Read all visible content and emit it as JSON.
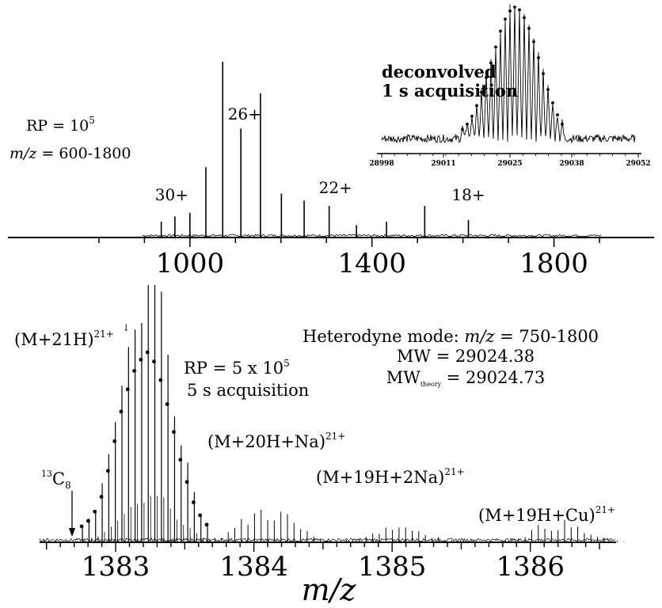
{
  "chart_data": [
    {
      "type": "line",
      "panel": "full-spectrum",
      "x_ticks": [
        1000,
        1400,
        1800
      ],
      "xlim": [
        600,
        2020
      ],
      "annotations": {
        "rp": "RP = 10",
        "rp_exp": "5",
        "mz_prefix": "m/z",
        "mz_range": " = 600-1800"
      },
      "charge_labels": [
        {
          "text": "30+",
          "x": 960
        },
        {
          "text": "26+",
          "x": 1120
        },
        {
          "text": "22+",
          "x": 1320
        },
        {
          "text": "18+",
          "x": 1612
        }
      ],
      "peaks": [
        {
          "x": 937,
          "y": 0.09
        },
        {
          "x": 967,
          "y": 0.12
        },
        {
          "x": 1000,
          "y": 0.14
        },
        {
          "x": 1035,
          "y": 0.4
        },
        {
          "x": 1072,
          "y": 1.0
        },
        {
          "x": 1112,
          "y": 0.62
        },
        {
          "x": 1155,
          "y": 0.82
        },
        {
          "x": 1201,
          "y": 0.25
        },
        {
          "x": 1251,
          "y": 0.21
        },
        {
          "x": 1306,
          "y": 0.18
        },
        {
          "x": 1366,
          "y": 0.07
        },
        {
          "x": 1432,
          "y": 0.09
        },
        {
          "x": 1516,
          "y": 0.18
        },
        {
          "x": 1612,
          "y": 0.1
        }
      ]
    },
    {
      "type": "line",
      "panel": "deconvolved-inset",
      "x_ticks": [
        28998,
        29011,
        29025,
        29038,
        29052
      ],
      "xlim": [
        28998,
        29052
      ],
      "annotations": {
        "line1": "deconvolved",
        "line2": "1 s acquisition"
      },
      "arrow_x": 29025,
      "envelope_center": 29025,
      "envelope_sigma": 5.0,
      "peak_heights": [
        0.08,
        0.12,
        0.18,
        0.26,
        0.36,
        0.47,
        0.58,
        0.7,
        0.82,
        0.91,
        0.97,
        1.0,
        0.98,
        0.92,
        0.84,
        0.74,
        0.62,
        0.5,
        0.38,
        0.28,
        0.19,
        0.12
      ],
      "peak_start_x": 29015
    },
    {
      "type": "line",
      "panel": "heterodyne-zoom",
      "x_ticks": [
        1383,
        1384,
        1385,
        1386
      ],
      "xlim": [
        1382.45,
        1386.62
      ],
      "xlabel": "m/z",
      "annotations": {
        "het_prefix": "Heterodyne mode: ",
        "het_mz": "m/z",
        "het_range": " = 750-1800",
        "mw": "MW = 29024.38",
        "mw_theory_prefix": "MW",
        "mw_theory_sub": "theory",
        "mw_theory_value": " = 29024.73",
        "rp": "RP = 5 x 10",
        "rp_exp": "5",
        "acq": "5 s acquisition",
        "c13": "13",
        "c13_label": "C",
        "c13_sub": "8"
      },
      "species": [
        {
          "text": "(M+21H)",
          "sup": "21+"
        },
        {
          "text": "(M+20H+Na)",
          "sup": "21+"
        },
        {
          "text": "(M+19H+2Na)",
          "sup": "21+"
        },
        {
          "text": "(M+19H+Cu)",
          "sup": "21+"
        }
      ],
      "main_peak_heights": [
        0.06,
        0.09,
        0.14,
        0.22,
        0.36,
        0.52,
        0.68,
        0.8,
        0.9,
        0.96,
        1.0,
        0.95,
        0.85,
        0.72,
        0.57,
        0.42,
        0.3,
        0.19,
        0.12,
        0.07
      ],
      "main_peak_start": 1382.76,
      "peak_spacing": 0.0476,
      "na_cluster": {
        "center": 1384.1,
        "height": 0.14
      },
      "na2_cluster": {
        "center": 1385.05,
        "height": 0.07
      },
      "cu_cluster": {
        "center": 1386.2,
        "height": 0.08
      }
    }
  ]
}
